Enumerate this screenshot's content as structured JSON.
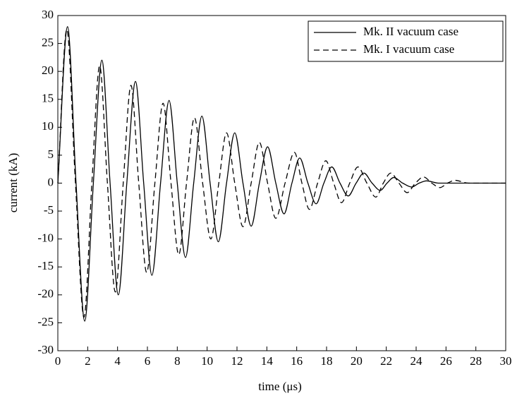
{
  "chart_data": {
    "type": "line",
    "xlabel": "time (μs)",
    "ylabel": "current (kA)",
    "xlim": [
      0,
      30
    ],
    "xticks": [
      0,
      2,
      4,
      6,
      8,
      10,
      12,
      14,
      16,
      18,
      20,
      22,
      24,
      26,
      28,
      30
    ],
    "ylim": [
      -30,
      30
    ],
    "yticks": [
      -30,
      -25,
      -20,
      -15,
      -10,
      -5,
      0,
      5,
      10,
      15,
      20,
      25,
      30
    ],
    "legend": "upper-right",
    "series": [
      {
        "name": "Mk. II vacuum case",
        "color": "#000000",
        "dash": "solid",
        "x": [
          0,
          0.65,
          1.22,
          1.8,
          2.38,
          2.95,
          3.5,
          4.05,
          4.62,
          5.2,
          5.75,
          6.3,
          6.88,
          7.45,
          8.0,
          8.55,
          9.1,
          9.65,
          10.2,
          10.75,
          11.3,
          11.85,
          12.4,
          12.95,
          13.5,
          14.05,
          14.6,
          15.15,
          15.68,
          16.2,
          16.75,
          17.3,
          17.82,
          18.35,
          18.9,
          19.45,
          19.98,
          20.5,
          21.05,
          21.6,
          22.05,
          22.5,
          23.1,
          23.7,
          24.2,
          24.7,
          25.5,
          30
        ],
        "values": [
          0,
          28,
          0,
          -24.7,
          0,
          22,
          0,
          -20,
          0,
          18.2,
          0,
          -16.5,
          0,
          14.8,
          0,
          -13.3,
          0,
          12,
          0,
          -10.5,
          0,
          9,
          0,
          -7.7,
          0,
          6.5,
          0,
          -5.5,
          0,
          4.5,
          0,
          -3.7,
          0,
          2.9,
          0,
          -2.3,
          0,
          1.8,
          0,
          -1.3,
          0,
          1,
          0,
          -0.7,
          0,
          0.4,
          0,
          0
        ]
      },
      {
        "name": "Mk. I vacuum case",
        "color": "#000000",
        "dash": "dashed",
        "x": [
          0,
          0.6,
          1.18,
          1.75,
          2.28,
          2.8,
          3.32,
          3.85,
          4.38,
          4.9,
          5.42,
          5.95,
          6.5,
          7.05,
          7.58,
          8.1,
          8.62,
          9.15,
          9.7,
          10.25,
          10.78,
          11.3,
          11.85,
          12.4,
          12.95,
          13.5,
          14.05,
          14.6,
          15.22,
          15.85,
          16.35,
          16.85,
          17.4,
          17.95,
          18.48,
          19.0,
          19.55,
          20.1,
          20.7,
          21.3,
          21.8,
          22.3,
          22.85,
          23.4,
          23.95,
          24.5,
          25.05,
          25.6,
          26.1,
          26.6,
          27.5,
          30
        ],
        "values": [
          0,
          27.5,
          0,
          -24,
          0,
          21,
          0,
          -19.5,
          0,
          17.5,
          0,
          -16,
          0,
          14.3,
          0,
          -12.8,
          0,
          11.7,
          0,
          -10,
          0,
          9,
          0,
          -7.8,
          0,
          7.3,
          0,
          -6.3,
          0,
          5.5,
          0,
          -4.7,
          0,
          4,
          0,
          -3.5,
          0,
          2.9,
          0,
          -2.5,
          0,
          1.8,
          0,
          -1.7,
          0,
          1.1,
          0,
          -0.8,
          0,
          0.5,
          0,
          0
        ]
      }
    ]
  }
}
